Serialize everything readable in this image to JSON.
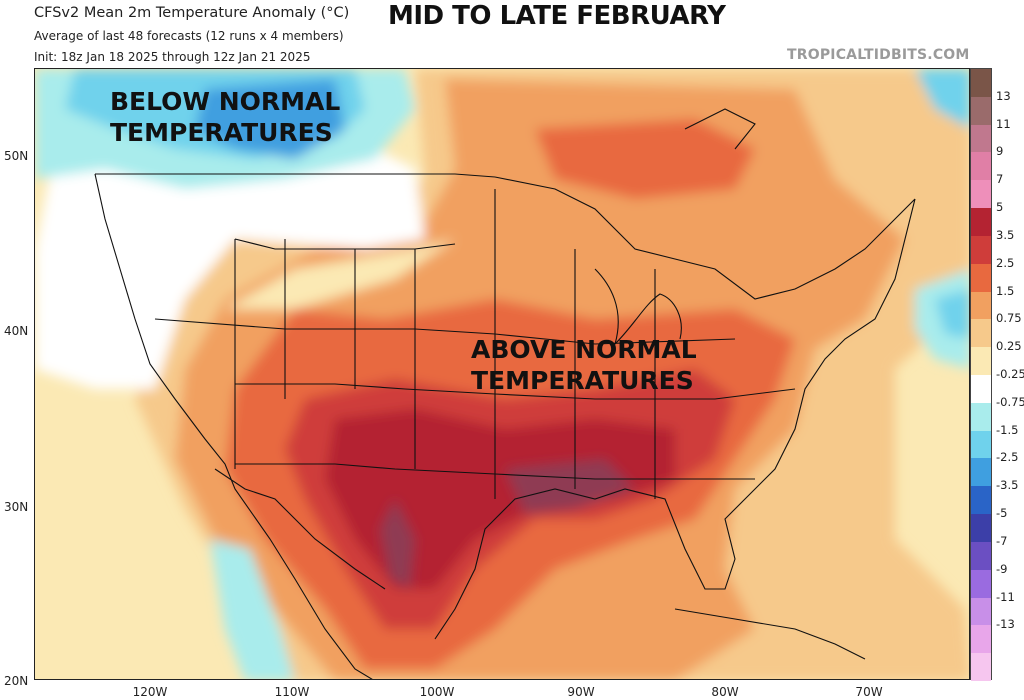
{
  "header": {
    "title": "CFSv2 Mean 2m Temperature Anomaly (°C)",
    "subtitle_1": "Average of last 48 forecasts (12 runs x 4 members)",
    "subtitle_2": "Init: 18z Jan 18 2025 through 12z Jan 21 2025",
    "headline": "MID TO LATE FEBRUARY",
    "credit": "TROPICALTIDBITS.COM"
  },
  "annotations": {
    "below_line1": "BELOW NORMAL",
    "below_line2": "TEMPERATURES",
    "above_line1": "ABOVE NORMAL",
    "above_line2": "TEMPERATURES"
  },
  "axes": {
    "lat_labels": [
      "50N",
      "40N",
      "30N",
      "20N"
    ],
    "lon_labels": [
      "120W",
      "110W",
      "100W",
      "90W",
      "80W",
      "70W"
    ]
  },
  "colorbar": {
    "labels": [
      "13",
      "11",
      "9",
      "7",
      "5",
      "3.5",
      "2.5",
      "1.5",
      "0.75",
      "0.25",
      "-0.25",
      "-0.75",
      "-1.5",
      "-2.5",
      "-3.5",
      "-5",
      "-7",
      "-9",
      "-11",
      "-13"
    ],
    "colors": [
      "#7a5548",
      "#9a6b6b",
      "#c0788e",
      "#e07fa6",
      "#ee8fba",
      "#b42332",
      "#cf3d3a",
      "#e8693f",
      "#f1a060",
      "#f6c98b",
      "#fbe9b4",
      "#ffffff",
      "#a9ecec",
      "#6fd2ec",
      "#3f9fe0",
      "#2a64c7",
      "#3c3fa8",
      "#6b4fc2",
      "#9a6be0",
      "#c88fe8",
      "#e8a6ea",
      "#f6c6ef"
    ]
  },
  "colors": {
    "cold_light": "#a9ecec",
    "cold_mid": "#6fd2ec",
    "cold_deep": "#3f9fe0",
    "neutral": "#ffffff",
    "warm_faint": "#fbe9b4",
    "warm_light": "#f6c98b",
    "warm_mid": "#f1a060",
    "warm_strong": "#e8693f",
    "warm_deep": "#cf3d3a",
    "warm_core": "#b42332",
    "warm_peak": "#8f3a52"
  }
}
